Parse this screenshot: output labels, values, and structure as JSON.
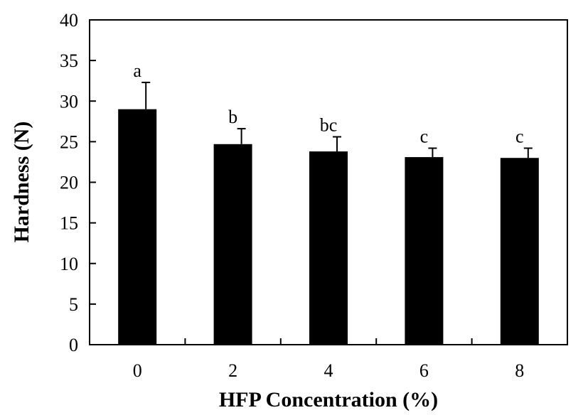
{
  "chart_data": {
    "type": "bar",
    "categories": [
      "0",
      "2",
      "4",
      "6",
      "8"
    ],
    "values": [
      29.0,
      24.7,
      23.8,
      23.1,
      23.0
    ],
    "error": [
      3.3,
      1.9,
      1.8,
      1.1,
      1.2
    ],
    "significance_labels": [
      "a",
      "b",
      "bc",
      "c",
      "c"
    ],
    "xlabel": "HFP Concentration (%)",
    "ylabel": "Hardness (N)",
    "ylim": [
      0,
      40
    ],
    "yticks": [
      0,
      5,
      10,
      15,
      20,
      25,
      30,
      35,
      40
    ],
    "grid": false,
    "legend": "none",
    "bar_color": "#000000"
  }
}
